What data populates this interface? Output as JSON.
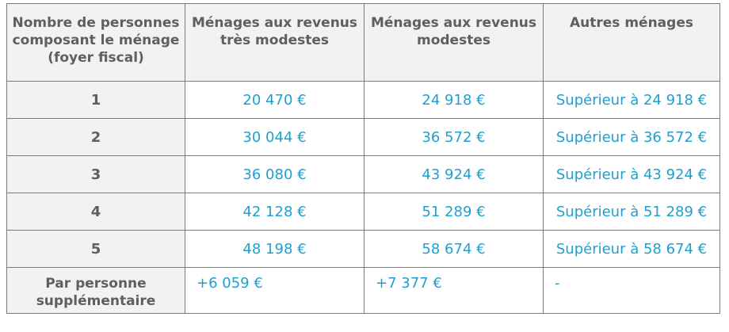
{
  "table": {
    "headers": [
      "Nombre de personnes composant le ménage (foyer fiscal)",
      "Ménages aux revenus très modestes",
      "Ménages aux revenus modestes",
      "Autres ménages"
    ],
    "rows": [
      {
        "persons": "1",
        "tres_modestes": "20 470 €",
        "modestes": "24 918 €",
        "autres": "Supérieur à 24 918 €"
      },
      {
        "persons": "2",
        "tres_modestes": "30 044 €",
        "modestes": "36 572 €",
        "autres": "Supérieur à 36 572 €"
      },
      {
        "persons": "3",
        "tres_modestes": "36 080 €",
        "modestes": "43 924 €",
        "autres": "Supérieur à 43 924 €"
      },
      {
        "persons": "4",
        "tres_modestes": "42 128 €",
        "modestes": "51 289 €",
        "autres": "Supérieur à 51 289 €"
      },
      {
        "persons": "5",
        "tres_modestes": "48 198 €",
        "modestes": "58 674 €",
        "autres": "Supérieur à 58 674 €"
      },
      {
        "persons": "Par personne supplémentaire",
        "tres_modestes": "+6 059 €",
        "modestes": "+7 377 €",
        "autres": "-"
      }
    ]
  },
  "colors": {
    "header_bg": "#f2f2f2",
    "header_text": "#5f5f5f",
    "value_text": "#1ea0cf",
    "border": "#7a7a7a"
  }
}
